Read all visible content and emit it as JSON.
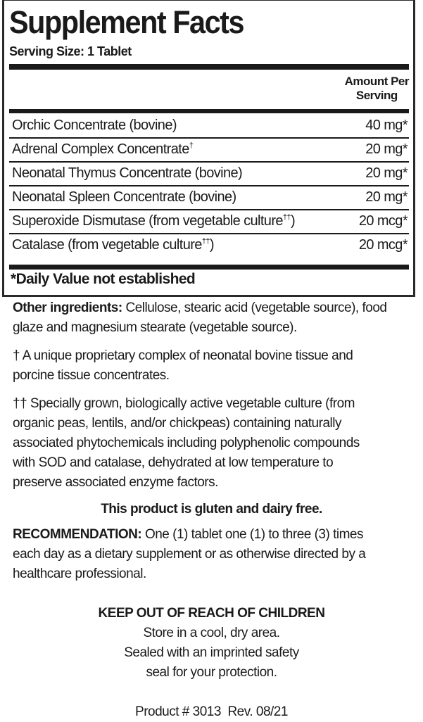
{
  "panel": {
    "title": "Supplement Facts",
    "serving_size": "Serving Size: 1 Tablet",
    "amount_header": [
      "Amount Per",
      "Serving"
    ],
    "rows": [
      {
        "name": "Orchic Concentrate (bovine)",
        "mark": "",
        "suffix": "",
        "amount": "40 mg*"
      },
      {
        "name": "Adrenal Complex Concentrate",
        "mark": "†",
        "suffix": "",
        "amount": "20 mg*"
      },
      {
        "name": "Neonatal Thymus Concentrate (bovine)",
        "mark": "",
        "suffix": "",
        "amount": "20 mg*"
      },
      {
        "name": "Neonatal Spleen Concentrate (bovine)",
        "mark": "",
        "suffix": "",
        "amount": "20 mg*"
      },
      {
        "name": "Superoxide Dismutase (from vegetable culture",
        "mark": "††",
        "suffix": ")",
        "amount": "20 mcg*"
      },
      {
        "name": "Catalase (from vegetable culture",
        "mark": "††",
        "suffix": ")",
        "amount": "20 mcg*"
      }
    ],
    "daily_value_note": "*Daily Value not established"
  },
  "other_ingredients": {
    "label": "Other ingredients:",
    "lines": [
      " Cellulose, stearic acid (vegetable source), food",
      "glaze and magnesium stearate (vegetable source)."
    ]
  },
  "footnote_dagger": [
    "† A unique proprietary complex of neonatal bovine tissue and",
    "porcine tissue concentrates."
  ],
  "footnote_double_dagger": [
    "†† Specially grown, biologically active vegetable culture (from",
    "organic peas, lentils, and/or chickpeas) containing naturally",
    "associated phytochemicals including polyphenolic compounds",
    "with SOD and catalase, dehydrated at low temperature to",
    "preserve associated enzyme factors."
  ],
  "gluten_statement": "This product is gluten and dairy free.",
  "recommendation": {
    "label": "RECOMMENDATION:",
    "lines": [
      " One (1) tablet one (1) to three (3) times",
      "each day as a dietary supplement or as otherwise directed by a",
      "healthcare professional."
    ]
  },
  "warning": "KEEP OUT OF REACH OF CHILDREN",
  "storage": [
    "Store in a cool, dry area.",
    "Sealed with an imprinted safety",
    "seal for your protection."
  ],
  "product_info": "Product # 3013  Rev. 08/21"
}
